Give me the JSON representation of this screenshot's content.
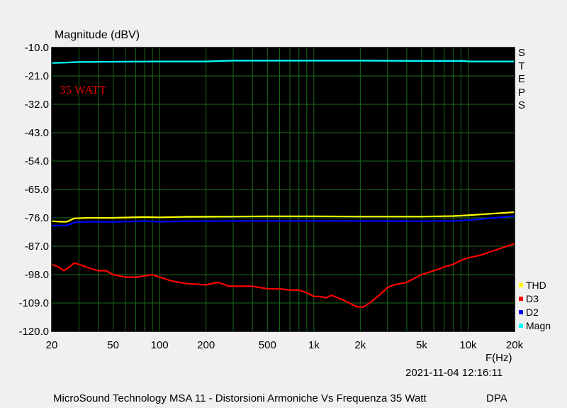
{
  "chart_data": {
    "type": "line",
    "ylabel": "Magnitude (dBV)",
    "xlabel": "F(Hz)",
    "xscale": "log",
    "xlim": [
      20,
      20000
    ],
    "ylim": [
      -120,
      -10
    ],
    "y_ticks": [
      "-10.0",
      "-21.0",
      "-32.0",
      "-43.0",
      "-54.0",
      "-65.0",
      "-76.0",
      "-87.0",
      "-98.0",
      "-109.0",
      "-120.0"
    ],
    "x_ticks": [
      {
        "value": 20,
        "label": "20"
      },
      {
        "value": 50,
        "label": "50"
      },
      {
        "value": 100,
        "label": "100"
      },
      {
        "value": 200,
        "label": "200"
      },
      {
        "value": 500,
        "label": "500"
      },
      {
        "value": 1000,
        "label": "1k"
      },
      {
        "value": 2000,
        "label": "2k"
      },
      {
        "value": 5000,
        "label": "5k"
      },
      {
        "value": 10000,
        "label": "10k"
      },
      {
        "value": 20000,
        "label": "20k"
      }
    ],
    "annotation": "35 WATT",
    "steps_label": "STEPS",
    "legend_position": "right-bottom",
    "grid": true,
    "plot_background": "#000000",
    "grid_color": "#1a6b1a",
    "series": [
      {
        "name": "Magn",
        "color": "#00ffff",
        "x": [
          20,
          25,
          30,
          50,
          100,
          200,
          250,
          300,
          500,
          1000,
          2000,
          5000,
          9500,
          10000,
          20000
        ],
        "y": [
          -16.0,
          -15.8,
          -15.6,
          -15.5,
          -15.4,
          -15.4,
          -15.2,
          -15.1,
          -15.1,
          -15.1,
          -15.1,
          -15.2,
          -15.2,
          -15.4,
          -15.4
        ]
      },
      {
        "name": "D2",
        "color": "#0000ff",
        "x": [
          20,
          23,
          25,
          28,
          35,
          50,
          80,
          100,
          150,
          300,
          500,
          1000,
          2000,
          5000,
          8000,
          10000,
          15000,
          20000
        ],
        "y": [
          -79.0,
          -79.0,
          -79.0,
          -77.8,
          -77.5,
          -77.6,
          -77.3,
          -77.5,
          -77.3,
          -77.2,
          -77.2,
          -77.2,
          -77.2,
          -77.3,
          -77.2,
          -76.9,
          -76.0,
          -75.3
        ]
      },
      {
        "name": "THD",
        "color": "#ffff00",
        "x": [
          20,
          23,
          25,
          28,
          35,
          50,
          80,
          100,
          150,
          300,
          500,
          1000,
          2000,
          5000,
          8000,
          10000,
          15000,
          20000
        ],
        "y": [
          -77.3,
          -77.5,
          -77.5,
          -76.2,
          -76.0,
          -76.0,
          -75.7,
          -75.8,
          -75.6,
          -75.5,
          -75.4,
          -75.4,
          -75.5,
          -75.5,
          -75.3,
          -75.0,
          -74.3,
          -73.8
        ]
      },
      {
        "name": "D3",
        "color": "#ff0000",
        "x": [
          20,
          22,
          24,
          26,
          28,
          30,
          35,
          40,
          45,
          50,
          60,
          70,
          80,
          90,
          100,
          120,
          150,
          200,
          240,
          280,
          300,
          400,
          500,
          600,
          700,
          800,
          900,
          1000,
          1100,
          1200,
          1300,
          1500,
          1700,
          1900,
          2100,
          2300,
          2600,
          3000,
          3300,
          4000,
          5000,
          6000,
          7000,
          8000,
          9000,
          10000,
          12000,
          15000,
          20000
        ],
        "y": [
          -94.0,
          -95.0,
          -96.5,
          -95.0,
          -93.5,
          -94.0,
          -95.5,
          -96.5,
          -96.5,
          -98.0,
          -99.0,
          -99.0,
          -98.5,
          -98.0,
          -99.0,
          -100.5,
          -101.5,
          -102.0,
          -101.0,
          -102.5,
          -102.5,
          -102.5,
          -103.5,
          -103.5,
          -104.0,
          -104.0,
          -105.0,
          -106.5,
          -106.5,
          -107.0,
          -106.0,
          -107.5,
          -109.0,
          -110.5,
          -110.5,
          -109.0,
          -106.5,
          -103.0,
          -102.0,
          -101.0,
          -98.0,
          -96.5,
          -95.0,
          -94.0,
          -92.5,
          -91.5,
          -90.5,
          -88.5,
          -86.0
        ]
      }
    ],
    "legend_order": [
      "THD",
      "D3",
      "D2",
      "Magn"
    ]
  },
  "timestamp": "2021-11-04 12:16:11",
  "footer": "MicroSound Technology MSA 11 - Distorsioni Armoniche Vs Frequenza 35 Watt",
  "brand": "DPA"
}
